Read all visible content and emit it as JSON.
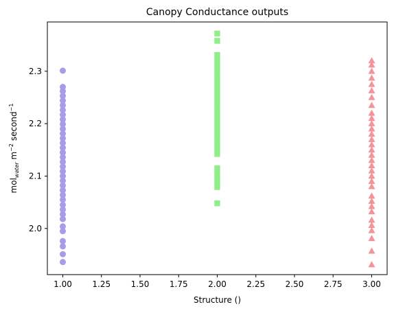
{
  "chart_data": {
    "type": "scatter",
    "title": "Canopy Conductance outputs",
    "xlabel": "Structure ()",
    "ylabel": {
      "prefix": "mol",
      "subscript": "water",
      "middle": " m",
      "exp1": "−2",
      "unit2": " second",
      "exp2": "−1"
    },
    "xlim": [
      0.9,
      3.1
    ],
    "ylim": [
      1.912,
      2.394
    ],
    "x_ticks": [
      "1.00",
      "1.25",
      "1.50",
      "1.75",
      "2.00",
      "2.25",
      "2.50",
      "2.75",
      "3.00"
    ],
    "x_tick_values": [
      1.0,
      1.25,
      1.5,
      1.75,
      2.0,
      2.25,
      2.5,
      2.75,
      3.0
    ],
    "y_ticks": [
      "2.0",
      "2.1",
      "2.2",
      "2.3"
    ],
    "y_tick_values": [
      2.0,
      2.1,
      2.2,
      2.3
    ],
    "grid": false,
    "series": [
      {
        "x": 1,
        "marker": "circle",
        "color": "#a99be8",
        "values": [
          1.936,
          1.951,
          1.966,
          1.976,
          1.995,
          2.004,
          2.018,
          2.027,
          2.036,
          2.045,
          2.055,
          2.064,
          2.073,
          2.082,
          2.091,
          2.1,
          2.109,
          2.118,
          2.127,
          2.136,
          2.145,
          2.154,
          2.163,
          2.172,
          2.181,
          2.19,
          2.199,
          2.208,
          2.217,
          2.226,
          2.235,
          2.244,
          2.253,
          2.262,
          2.27,
          2.301
        ]
      },
      {
        "x": 2,
        "marker": "square",
        "color": "#90ee88",
        "values": [
          2.048,
          2.079,
          2.088,
          2.097,
          2.106,
          2.115,
          2.142,
          2.151,
          2.16,
          2.169,
          2.178,
          2.187,
          2.196,
          2.205,
          2.214,
          2.223,
          2.232,
          2.241,
          2.25,
          2.259,
          2.268,
          2.277,
          2.286,
          2.295,
          2.304,
          2.313,
          2.322,
          2.331,
          2.358,
          2.372
        ]
      },
      {
        "x": 3,
        "marker": "triangle",
        "color": "#f4939a",
        "values": [
          1.931,
          1.957,
          1.981,
          1.996,
          2.006,
          2.016,
          2.032,
          2.042,
          2.052,
          2.062,
          2.08,
          2.09,
          2.1,
          2.11,
          2.12,
          2.13,
          2.14,
          2.15,
          2.16,
          2.17,
          2.18,
          2.19,
          2.2,
          2.21,
          2.22,
          2.235,
          2.25,
          2.263,
          2.275,
          2.287,
          2.3,
          2.312,
          2.32
        ]
      }
    ]
  }
}
